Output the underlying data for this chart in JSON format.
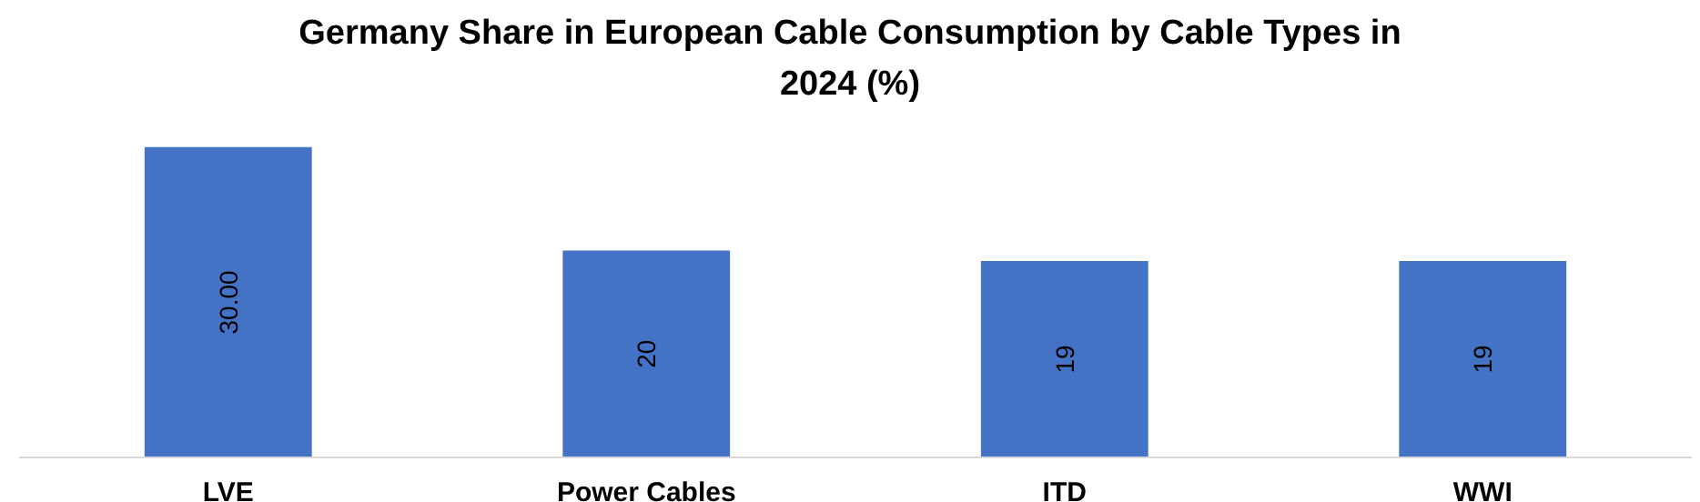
{
  "chart_data": {
    "type": "bar",
    "title": "Germany Share in European Cable Consumption by Cable Types in 2024 (%)",
    "categories": [
      "LVE",
      "Power Cables",
      "ITD",
      "WWI"
    ],
    "values": [
      30,
      20,
      19,
      19
    ],
    "value_labels": [
      "30.00",
      "20",
      "19",
      "19"
    ],
    "color": "#4472c4",
    "grid": false
  }
}
